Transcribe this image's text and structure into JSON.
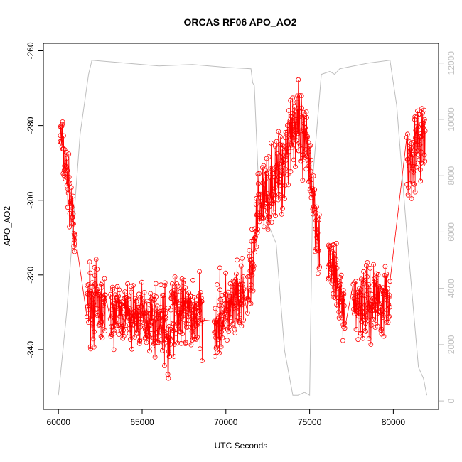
{
  "chart_data": {
    "type": "scatter",
    "title": "ORCAS RF06 APO_AO2",
    "xlabel": "UTC Seconds",
    "ylabel": "APO_AO2",
    "xlim": [
      59100,
      82700
    ],
    "ylim": [
      -356,
      -258
    ],
    "y2lim": [
      -300,
      12700
    ],
    "xticks": [
      60000,
      65000,
      70000,
      75000,
      80000
    ],
    "yticks": [
      -340,
      -320,
      -300,
      -280,
      -260
    ],
    "y2ticks": [
      0,
      2000,
      4000,
      6000,
      8000,
      10000,
      12000
    ],
    "colors": {
      "apo": "#ff0000",
      "altitude": "#bebebe",
      "axis": "#000000",
      "axis_right": "#bfbfbf"
    },
    "series": [
      {
        "axis": "left",
        "style": "points+line",
        "segments": [
          {
            "x0": 60100,
            "x1": 60800,
            "yStart": -282,
            "yEnd": -302,
            "jitter": 4
          },
          {
            "x0": 60800,
            "x1": 61000,
            "yStart": -302,
            "yEnd": -315,
            "jitter": 3
          },
          {
            "x0": 61700,
            "x1": 62800,
            "yStart": -326,
            "yEnd": -330,
            "jitter": 5
          },
          {
            "x0": 63100,
            "x1": 66300,
            "yStart": -330,
            "yEnd": -332,
            "jitter": 4
          },
          {
            "x0": 66300,
            "x1": 66700,
            "yStart": -333,
            "yEnd": -340,
            "jitter": 6
          },
          {
            "x0": 66700,
            "x1": 68600,
            "yStart": -330,
            "yEnd": -331,
            "jitter": 5
          },
          {
            "x0": 69300,
            "x1": 71100,
            "yStart": -332,
            "yEnd": -327,
            "jitter": 5
          },
          {
            "x0": 71300,
            "x1": 71900,
            "yStart": -325,
            "yEnd": -306,
            "jitter": 5
          },
          {
            "x0": 71900,
            "x1": 73300,
            "yStart": -302,
            "yEnd": -292,
            "jitter": 5
          },
          {
            "x0": 73300,
            "x1": 74000,
            "yStart": -292,
            "yEnd": -278,
            "jitter": 6
          },
          {
            "x0": 74000,
            "x1": 75100,
            "yStart": -280,
            "yEnd": -290,
            "jitter": 6
          },
          {
            "x0": 75100,
            "x1": 75600,
            "yStart": -295,
            "yEnd": -312,
            "jitter": 5
          },
          {
            "x0": 76100,
            "x1": 77100,
            "yStart": -315,
            "yEnd": -330,
            "jitter": 4
          },
          {
            "x0": 77600,
            "x1": 79800,
            "yStart": -328,
            "yEnd": -326,
            "jitter": 5
          },
          {
            "x0": 80800,
            "x1": 81900,
            "yStart": -290,
            "yEnd": -282,
            "jitter": 5
          }
        ]
      },
      {
        "axis": "right",
        "style": "line",
        "x": [
          60000,
          60500,
          61300,
          61800,
          62000,
          64000,
          66000,
          68000,
          70000,
          71500,
          71600,
          71700,
          72000,
          73000,
          73500,
          74000,
          74300,
          74700,
          75000,
          75200,
          75700,
          76200,
          76500,
          76800,
          78500,
          79800,
          80200,
          80800,
          81500,
          81800,
          82000
        ],
        "y": [
          200,
          3200,
          9500,
          11600,
          12100,
          12000,
          11900,
          11950,
          11850,
          11800,
          11300,
          11200,
          7000,
          5600,
          1800,
          200,
          200,
          300,
          200,
          8000,
          11600,
          11700,
          11600,
          11800,
          12000,
          12100,
          10500,
          6000,
          1200,
          800,
          200
        ]
      }
    ]
  }
}
